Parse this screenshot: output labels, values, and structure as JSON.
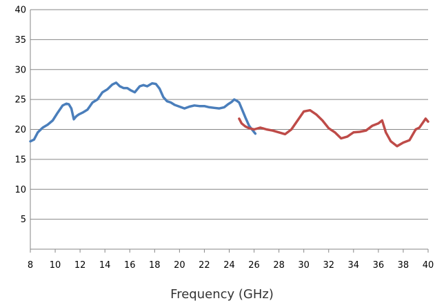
{
  "chart_data": {
    "type": "line",
    "title": "",
    "xlabel": "Frequency (GHz)",
    "ylabel": "",
    "xlim": [
      8,
      40
    ],
    "ylim": [
      0,
      40
    ],
    "x_ticks": [
      8,
      10,
      12,
      14,
      16,
      18,
      20,
      22,
      24,
      26,
      28,
      30,
      32,
      34,
      36,
      38,
      40
    ],
    "y_ticks": [
      5,
      10,
      15,
      20,
      25,
      30,
      35,
      40
    ],
    "grid": "horizontal",
    "legend": "none",
    "series": [
      {
        "color": "#4a7ebb",
        "x": [
          8.0,
          8.3,
          8.6,
          9.0,
          9.4,
          9.8,
          10.2,
          10.6,
          10.9,
          11.1,
          11.3,
          11.5,
          11.7,
          11.9,
          12.2,
          12.6,
          13.0,
          13.4,
          13.8,
          14.2,
          14.6,
          14.9,
          15.2,
          15.5,
          15.8,
          16.1,
          16.4,
          16.8,
          17.1,
          17.4,
          17.8,
          18.1,
          18.4,
          18.7,
          19.0,
          19.3,
          19.6,
          20.0,
          20.4,
          20.8,
          21.2,
          21.6,
          22.0,
          22.4,
          22.8,
          23.2,
          23.6,
          23.9,
          24.2,
          24.4,
          24.6,
          24.8,
          25.0,
          25.3,
          25.6,
          25.9,
          26.1
        ],
        "values": [
          18.0,
          18.3,
          19.5,
          20.3,
          20.8,
          21.5,
          22.8,
          24.0,
          24.3,
          24.2,
          23.5,
          21.7,
          22.2,
          22.5,
          22.8,
          23.3,
          24.5,
          25.0,
          26.2,
          26.7,
          27.5,
          27.8,
          27.2,
          26.9,
          26.9,
          26.5,
          26.2,
          27.2,
          27.4,
          27.2,
          27.7,
          27.6,
          26.8,
          25.4,
          24.7,
          24.5,
          24.1,
          23.8,
          23.5,
          23.8,
          24.0,
          23.9,
          23.9,
          23.7,
          23.6,
          23.5,
          23.7,
          24.2,
          24.6,
          25.0,
          24.8,
          24.5,
          23.5,
          22.0,
          20.6,
          19.8,
          19.3
        ]
      },
      {
        "color": "#be4b48",
        "x": [
          24.8,
          25.0,
          25.3,
          25.6,
          26.0,
          26.5,
          27.0,
          27.5,
          28.0,
          28.5,
          29.0,
          29.5,
          30.0,
          30.5,
          31.0,
          31.5,
          32.0,
          32.5,
          33.0,
          33.5,
          34.0,
          34.5,
          35.0,
          35.5,
          36.0,
          36.3,
          36.6,
          37.0,
          37.5,
          38.0,
          38.5,
          39.0,
          39.3,
          39.6,
          39.8,
          40.0
        ],
        "values": [
          21.8,
          21.0,
          20.5,
          20.2,
          20.0,
          20.3,
          20.0,
          19.8,
          19.5,
          19.2,
          20.0,
          21.5,
          23.0,
          23.2,
          22.5,
          21.5,
          20.2,
          19.5,
          18.5,
          18.8,
          19.5,
          19.6,
          19.8,
          20.6,
          21.0,
          21.5,
          19.5,
          18.0,
          17.2,
          17.8,
          18.2,
          20.0,
          20.3,
          21.2,
          21.8,
          21.3
        ]
      }
    ]
  }
}
